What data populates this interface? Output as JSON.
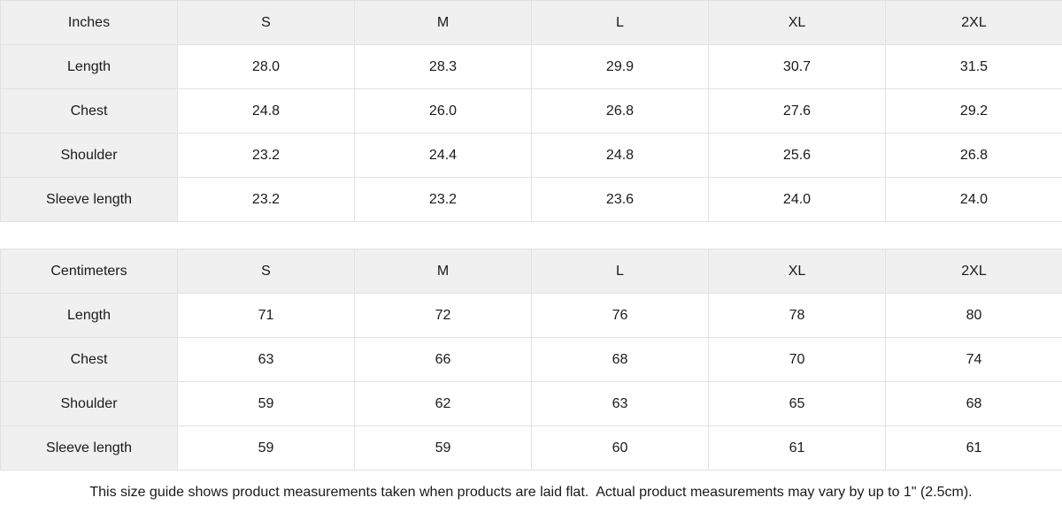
{
  "colors": {
    "header_bg": "#f0f0f0",
    "border": "#e2e2e2",
    "text": "#1a1a1a",
    "cell_bg": "#ffffff"
  },
  "tables": [
    {
      "unit": "Inches",
      "sizes": [
        "S",
        "M",
        "L",
        "XL",
        "2XL"
      ],
      "rows": [
        {
          "label": "Length",
          "values": [
            "28.0",
            "28.3",
            "29.9",
            "30.7",
            "31.5"
          ]
        },
        {
          "label": "Chest",
          "values": [
            "24.8",
            "26.0",
            "26.8",
            "27.6",
            "29.2"
          ]
        },
        {
          "label": "Shoulder",
          "values": [
            "23.2",
            "24.4",
            "24.8",
            "25.6",
            "26.8"
          ]
        },
        {
          "label": "Sleeve length",
          "values": [
            "23.2",
            "23.2",
            "23.6",
            "24.0",
            "24.0"
          ]
        }
      ]
    },
    {
      "unit": "Centimeters",
      "sizes": [
        "S",
        "M",
        "L",
        "XL",
        "2XL"
      ],
      "rows": [
        {
          "label": "Length",
          "values": [
            "71",
            "72",
            "76",
            "78",
            "80"
          ]
        },
        {
          "label": "Chest",
          "values": [
            "63",
            "66",
            "68",
            "70",
            "74"
          ]
        },
        {
          "label": "Shoulder",
          "values": [
            "59",
            "62",
            "63",
            "65",
            "68"
          ]
        },
        {
          "label": "Sleeve length",
          "values": [
            "59",
            "59",
            "60",
            "61",
            "61"
          ]
        }
      ]
    }
  ],
  "footer": {
    "note": "This size guide shows product measurements taken when products are laid flat.  Actual product measurements may vary by up to 1\" (2.5cm)."
  }
}
